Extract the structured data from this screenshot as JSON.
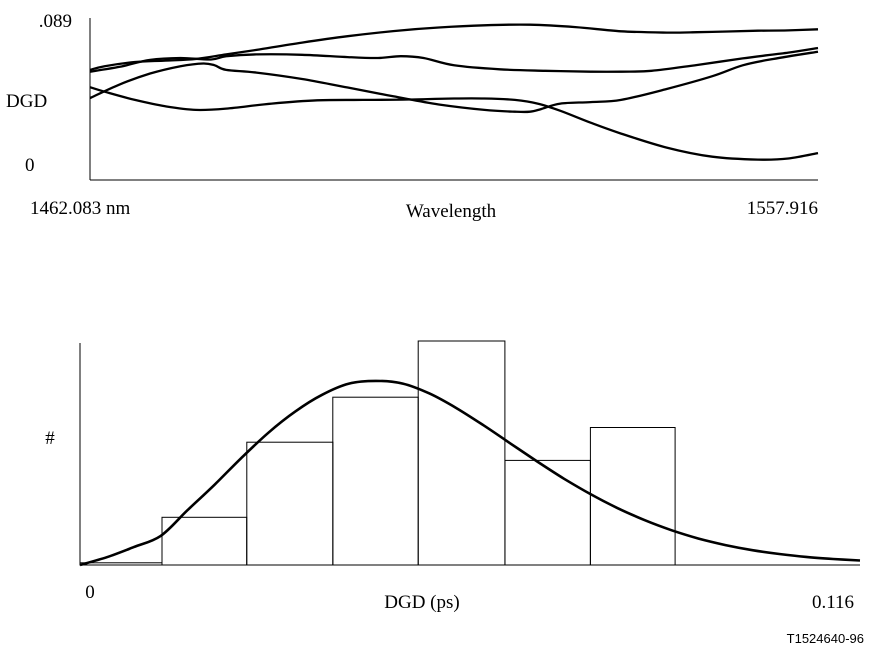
{
  "chart_data": [
    {
      "type": "line",
      "ylabel": "DGD",
      "xlabel": "Wavelength",
      "x_min_label": "1462.083 nm",
      "x_max_label": "1557.916",
      "y_max_label": ".089",
      "y_min_label": "0",
      "xlim": [
        1462.083,
        1557.916
      ],
      "ylim": [
        0,
        0.089
      ],
      "grid": false,
      "series": [
        {
          "x": [
            1462.083,
            1464,
            1468,
            1472,
            1476,
            1480,
            1484,
            1490,
            1496,
            1502,
            1508,
            1514,
            1520,
            1526,
            1532,
            1538,
            1542,
            1546,
            1550,
            1554,
            1557.916
          ],
          "values": [
            0.0605,
            0.0625,
            0.0648,
            0.0656,
            0.0665,
            0.069,
            0.0715,
            0.0755,
            0.079,
            0.0818,
            0.0838,
            0.085,
            0.0853,
            0.084,
            0.0817,
            0.081,
            0.0812,
            0.0816,
            0.082,
            0.0822,
            0.0828
          ]
        },
        {
          "x": [
            1462.083,
            1466,
            1470,
            1474,
            1478,
            1480,
            1484,
            1490,
            1496,
            1500,
            1503,
            1506,
            1510,
            1516,
            1522,
            1528,
            1532,
            1536,
            1542,
            1548,
            1554,
            1557.916
          ],
          "values": [
            0.0595,
            0.0622,
            0.066,
            0.067,
            0.0662,
            0.068,
            0.069,
            0.0688,
            0.0675,
            0.067,
            0.068,
            0.067,
            0.063,
            0.0608,
            0.06,
            0.0595,
            0.0595,
            0.06,
            0.0632,
            0.0668,
            0.07,
            0.0725
          ]
        },
        {
          "x": [
            1462.083,
            1466,
            1470,
            1474,
            1477,
            1478.5,
            1480,
            1484,
            1490,
            1496,
            1502,
            1508,
            1514,
            1518,
            1520,
            1521.5,
            1524,
            1528,
            1532,
            1538,
            1544,
            1548,
            1552,
            1557.916
          ],
          "values": [
            0.045,
            0.0525,
            0.0585,
            0.0625,
            0.064,
            0.063,
            0.0605,
            0.059,
            0.0555,
            0.0508,
            0.046,
            0.0415,
            0.0385,
            0.0375,
            0.0375,
            0.039,
            0.042,
            0.0428,
            0.044,
            0.05,
            0.057,
            0.063,
            0.0665,
            0.0705
          ]
        },
        {
          "x": [
            1462.083,
            1464,
            1468,
            1472,
            1476,
            1480,
            1486,
            1492,
            1498,
            1504,
            1510,
            1514,
            1518,
            1521,
            1524,
            1528,
            1532,
            1538,
            1544,
            1550,
            1554,
            1557.916
          ],
          "values": [
            0.051,
            0.0485,
            0.044,
            0.0405,
            0.0385,
            0.0392,
            0.042,
            0.0438,
            0.044,
            0.0442,
            0.0448,
            0.0448,
            0.044,
            0.042,
            0.038,
            0.0315,
            0.0255,
            0.0178,
            0.0128,
            0.0112,
            0.0118,
            0.0148
          ]
        }
      ]
    },
    {
      "type": "bar",
      "xlabel": "DGD (ps)",
      "ylabel": "#",
      "x_min_label": "0",
      "x_max_label": "0.116",
      "xlim": [
        0,
        0.116
      ],
      "ylim": [
        0,
        1
      ],
      "grid": false,
      "histogram": {
        "edges": [
          0,
          0.0122,
          0.0248,
          0.0376,
          0.0503,
          0.0632,
          0.0759,
          0.0885
        ],
        "values": [
          0.01,
          0.213,
          0.548,
          0.749,
          1.0,
          0.467,
          0.614
        ]
      },
      "fit_curve": {
        "x": [
          0,
          0.004,
          0.008,
          0.012,
          0.016,
          0.02,
          0.024,
          0.028,
          0.032,
          0.036,
          0.04,
          0.044,
          0.048,
          0.052,
          0.056,
          0.06,
          0.064,
          0.068,
          0.072,
          0.076,
          0.08,
          0.084,
          0.088,
          0.092,
          0.096,
          0.1,
          0.104,
          0.108,
          0.112,
          0.116
        ],
        "values": [
          0.0,
          0.035,
          0.08,
          0.13,
          0.245,
          0.358,
          0.478,
          0.59,
          0.685,
          0.76,
          0.81,
          0.822,
          0.81,
          0.765,
          0.7,
          0.624,
          0.543,
          0.462,
          0.385,
          0.315,
          0.253,
          0.2,
          0.155,
          0.118,
          0.089,
          0.066,
          0.049,
          0.036,
          0.027,
          0.02
        ]
      }
    }
  ],
  "figure_code": "T1524640-96"
}
